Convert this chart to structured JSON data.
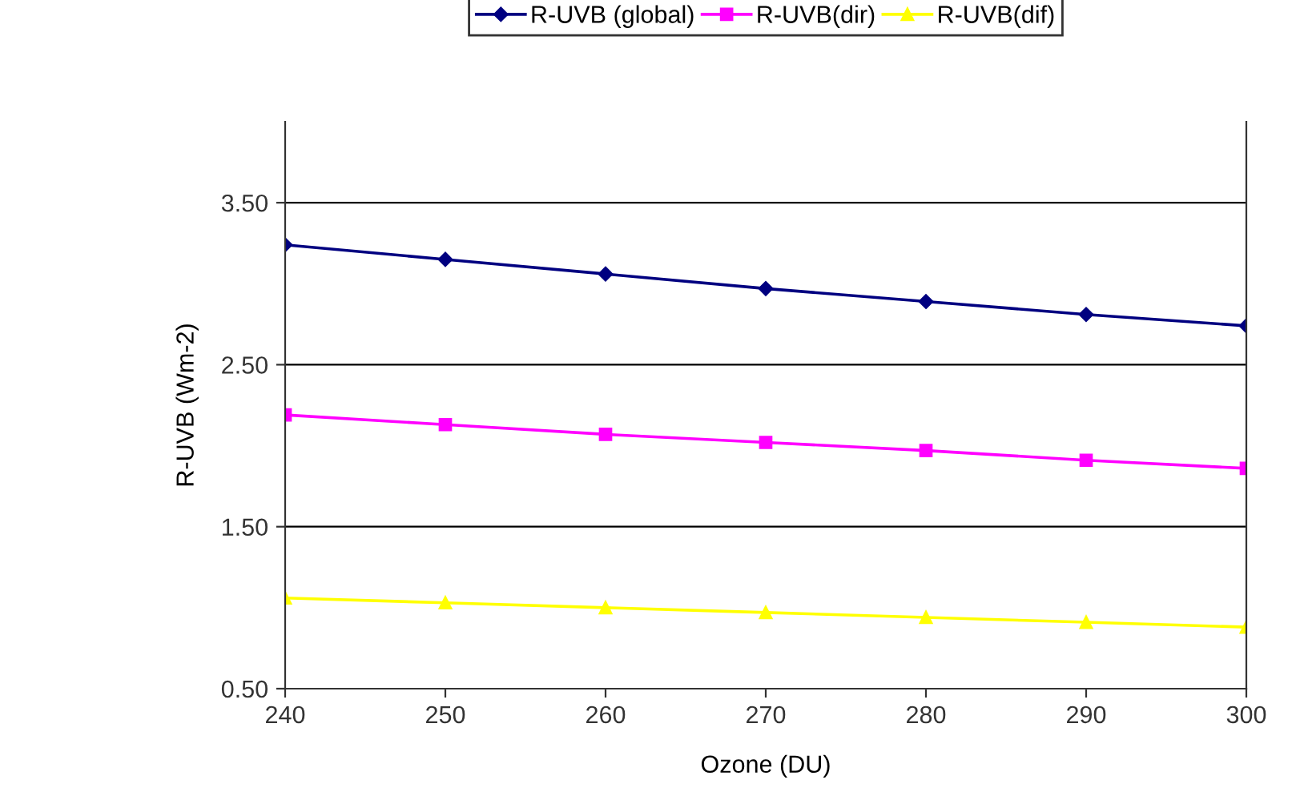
{
  "chart_data": {
    "type": "line",
    "xlabel": "Ozone (DU)",
    "ylabel": "R-UVB (Wm-2)",
    "x": [
      240,
      250,
      260,
      270,
      280,
      290,
      300
    ],
    "series": [
      {
        "name": "R-UVB (global)",
        "color": "#000080",
        "marker": "diamond",
        "values": [
          3.24,
          3.15,
          3.06,
          2.97,
          2.89,
          2.81,
          2.74
        ]
      },
      {
        "name": "R-UVB(dir)",
        "color": "#ff00ff",
        "marker": "square",
        "values": [
          2.19,
          2.13,
          2.07,
          2.02,
          1.97,
          1.91,
          1.86
        ]
      },
      {
        "name": "R-UVB(dif)",
        "color": "#ffff00",
        "marker": "triangle",
        "values": [
          1.06,
          1.03,
          1.0,
          0.97,
          0.94,
          0.91,
          0.88
        ]
      }
    ],
    "xlim": [
      240,
      300
    ],
    "xticks": [
      240,
      250,
      260,
      270,
      280,
      290,
      300
    ],
    "ylim": [
      0.5,
      4.0
    ],
    "yticks": [
      {
        "value": 0.5,
        "label": "0.50"
      },
      {
        "value": 1.5,
        "label": "1.50"
      },
      {
        "value": 2.5,
        "label": "2.50"
      },
      {
        "value": 3.5,
        "label": "3.50"
      }
    ],
    "grid": "y",
    "legend": "top",
    "line_style": "solid"
  }
}
